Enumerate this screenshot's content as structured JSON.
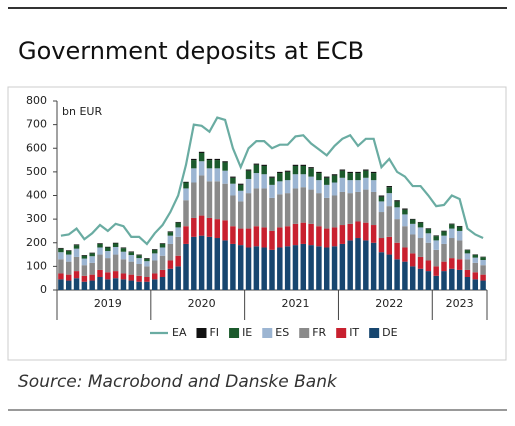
{
  "chart_data": {
    "type": "bar",
    "stacked": true,
    "title": "Government deposits at ECB",
    "y_label": "bn EUR",
    "source": "Source: Macrobond and Danske Bank",
    "categories": [
      null,
      null,
      null,
      null,
      null,
      null,
      "2019",
      null,
      null,
      null,
      null,
      null,
      null,
      null,
      null,
      null,
      null,
      null,
      "2020",
      null,
      null,
      null,
      null,
      null,
      null,
      null,
      null,
      null,
      null,
      null,
      "2021",
      null,
      null,
      null,
      null,
      null,
      null,
      null,
      null,
      null,
      null,
      null,
      "2022",
      null,
      null,
      null,
      null,
      null,
      null,
      null,
      null,
      "2023",
      null,
      null,
      null
    ],
    "ylim": [
      0,
      800
    ],
    "yticks": [
      0,
      100,
      200,
      300,
      400,
      500,
      600,
      700,
      800
    ],
    "grid": false,
    "legend": "bottom",
    "series": [
      {
        "name": "DE",
        "color": "#17466f",
        "values": [
          45,
          40,
          50,
          35,
          40,
          55,
          45,
          50,
          45,
          40,
          35,
          35,
          45,
          55,
          90,
          100,
          195,
          225,
          230,
          225,
          220,
          210,
          195,
          190,
          180,
          185,
          180,
          170,
          180,
          185,
          190,
          195,
          190,
          185,
          180,
          185,
          195,
          210,
          220,
          210,
          200,
          160,
          150,
          130,
          120,
          100,
          90,
          80,
          60,
          80,
          90,
          85,
          55,
          45,
          40
        ]
      },
      {
        "name": "IT",
        "color": "#c8202f",
        "values": [
          25,
          25,
          30,
          25,
          25,
          30,
          30,
          30,
          25,
          25,
          25,
          20,
          25,
          30,
          35,
          45,
          75,
          80,
          85,
          80,
          80,
          85,
          75,
          70,
          80,
          85,
          85,
          80,
          85,
          85,
          90,
          90,
          90,
          85,
          80,
          80,
          80,
          70,
          70,
          75,
          75,
          60,
          75,
          70,
          60,
          55,
          50,
          45,
          40,
          40,
          45,
          45,
          30,
          30,
          25
        ]
      },
      {
        "name": "FR",
        "color": "#8a8a8a",
        "values": [
          60,
          55,
          60,
          45,
          50,
          65,
          60,
          70,
          60,
          55,
          50,
          45,
          55,
          60,
          70,
          80,
          110,
          150,
          170,
          155,
          160,
          155,
          130,
          115,
          150,
          160,
          165,
          140,
          140,
          140,
          150,
          150,
          145,
          140,
          130,
          135,
          140,
          130,
          125,
          140,
          140,
          110,
          130,
          100,
          90,
          80,
          80,
          75,
          70,
          75,
          85,
          80,
          45,
          40,
          40
        ]
      },
      {
        "name": "ES",
        "color": "#9cb5d2",
        "values": [
          30,
          30,
          35,
          28,
          28,
          30,
          30,
          32,
          32,
          28,
          25,
          22,
          30,
          35,
          35,
          40,
          50,
          60,
          60,
          55,
          55,
          55,
          50,
          45,
          60,
          65,
          60,
          55,
          55,
          55,
          60,
          55,
          55,
          55,
          55,
          55,
          60,
          55,
          50,
          50,
          50,
          45,
          55,
          50,
          50,
          45,
          45,
          40,
          40,
          35,
          40,
          40,
          25,
          22,
          22
        ]
      },
      {
        "name": "IE",
        "color": "#1b5a2c",
        "values": [
          15,
          15,
          15,
          12,
          12,
          15,
          15,
          15,
          15,
          12,
          12,
          10,
          15,
          15,
          15,
          20,
          25,
          35,
          35,
          35,
          35,
          35,
          25,
          25,
          35,
          35,
          35,
          30,
          35,
          35,
          35,
          35,
          35,
          30,
          30,
          30,
          30,
          30,
          30,
          30,
          30,
          20,
          25,
          25,
          20,
          18,
          20,
          18,
          18,
          18,
          18,
          18,
          14,
          12,
          12
        ]
      },
      {
        "name": "FI",
        "color": "#111111",
        "values": [
          3,
          3,
          3,
          3,
          3,
          3,
          3,
          3,
          3,
          3,
          3,
          3,
          3,
          3,
          3,
          3,
          3,
          5,
          5,
          5,
          5,
          5,
          5,
          5,
          5,
          5,
          5,
          5,
          5,
          5,
          5,
          5,
          5,
          5,
          5,
          5,
          5,
          5,
          5,
          5,
          5,
          5,
          5,
          5,
          5,
          3,
          3,
          3,
          3,
          3,
          3,
          3,
          2,
          2,
          2
        ]
      },
      {
        "name": "EA",
        "color": "#6aaca2",
        "type": "line",
        "values": [
          230,
          235,
          260,
          215,
          240,
          275,
          250,
          280,
          270,
          225,
          225,
          195,
          240,
          275,
          330,
          400,
          530,
          700,
          695,
          670,
          730,
          720,
          600,
          520,
          600,
          630,
          630,
          600,
          615,
          615,
          650,
          655,
          620,
          595,
          570,
          610,
          640,
          655,
          610,
          640,
          640,
          520,
          555,
          500,
          480,
          440,
          440,
          400,
          355,
          360,
          400,
          385,
          260,
          235,
          220
        ]
      }
    ]
  }
}
